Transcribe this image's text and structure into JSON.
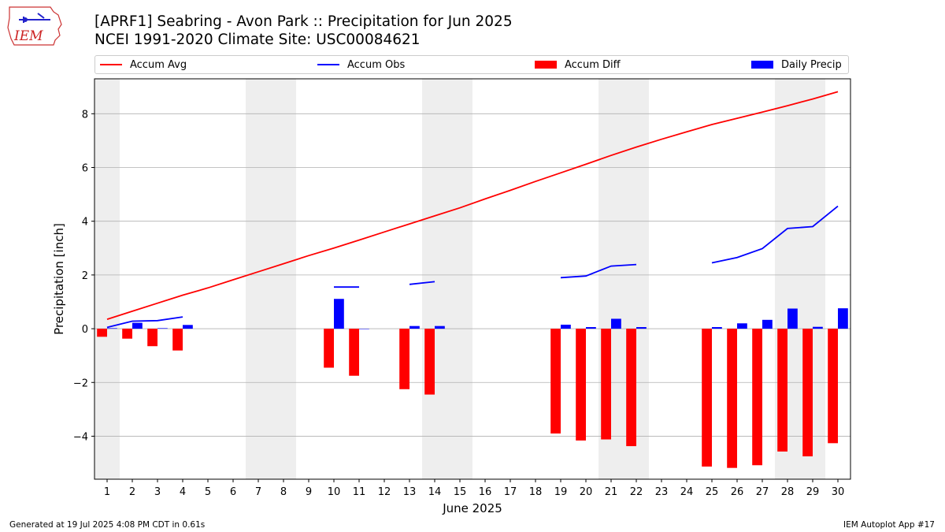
{
  "header": {
    "logo_text": "IEM",
    "title_line1": "[APRF1] Seabring - Avon Park :: Precipitation for Jun 2025",
    "title_line2": "NCEI 1991-2020 Climate Site: USC00084621"
  },
  "footer": {
    "generated": "Generated at 19 Jul 2025 4:08 PM CDT in 0.61s",
    "app": "IEM Autoplot App #17"
  },
  "colors": {
    "accum_avg": "#ff0000",
    "accum_obs": "#0000ff",
    "accum_diff": "#ff0000",
    "daily_precip": "#0000ff",
    "weekend_shade": "#eeeeee",
    "grid": "#b0b0b0"
  },
  "chart_data": {
    "type": "bar",
    "xlabel": "June 2025",
    "ylabel": "Precipitation [inch]",
    "ylim": [
      -5.6,
      9.3
    ],
    "yticks": [
      -4,
      -2,
      0,
      2,
      4,
      6,
      8
    ],
    "ytick_labels": [
      "−4",
      "−2",
      "0",
      "2",
      "4",
      "6",
      "8"
    ],
    "grid": "horizontal",
    "legend_placement": "top",
    "weekend_days": [
      1,
      7,
      8,
      14,
      15,
      21,
      22,
      28,
      29
    ],
    "days": [
      1,
      2,
      3,
      4,
      5,
      6,
      7,
      8,
      9,
      10,
      11,
      12,
      13,
      14,
      15,
      16,
      17,
      18,
      19,
      20,
      21,
      22,
      23,
      24,
      25,
      26,
      27,
      28,
      29,
      30
    ],
    "series": [
      {
        "name": "Accum Avg",
        "kind": "line",
        "values": [
          0.35,
          0.65,
          0.95,
          1.25,
          1.52,
          1.82,
          2.12,
          2.42,
          2.72,
          3.0,
          3.3,
          3.6,
          3.9,
          4.2,
          4.5,
          4.83,
          5.15,
          5.48,
          5.8,
          6.12,
          6.45,
          6.76,
          7.05,
          7.33,
          7.6,
          7.83,
          8.06,
          8.3,
          8.55,
          8.82
        ]
      },
      {
        "name": "Accum Obs",
        "kind": "line",
        "values": [
          0.05,
          0.28,
          0.3,
          0.44,
          null,
          null,
          null,
          null,
          null,
          1.55,
          1.55,
          null,
          1.65,
          1.75,
          null,
          null,
          null,
          null,
          1.9,
          1.96,
          2.33,
          2.39,
          null,
          null,
          2.45,
          2.65,
          2.98,
          3.73,
          3.8,
          4.56
        ]
      },
      {
        "name": "Accum Diff",
        "kind": "bar",
        "values": [
          -0.3,
          -0.37,
          -0.65,
          -0.81,
          null,
          null,
          null,
          null,
          null,
          -1.45,
          -1.75,
          null,
          -2.25,
          -2.45,
          null,
          null,
          null,
          null,
          -3.9,
          -4.16,
          -4.12,
          -4.37,
          null,
          null,
          -5.13,
          -5.18,
          -5.08,
          -4.57,
          -4.75,
          -4.26
        ]
      },
      {
        "name": "Daily Precip",
        "kind": "bar",
        "values": [
          0.02,
          0.22,
          0.02,
          0.14,
          null,
          null,
          null,
          null,
          null,
          1.11,
          0.0,
          null,
          0.1,
          0.1,
          null,
          null,
          null,
          null,
          0.15,
          0.06,
          0.37,
          0.06,
          null,
          null,
          0.06,
          0.2,
          0.33,
          0.75,
          0.07,
          0.76
        ]
      }
    ]
  }
}
